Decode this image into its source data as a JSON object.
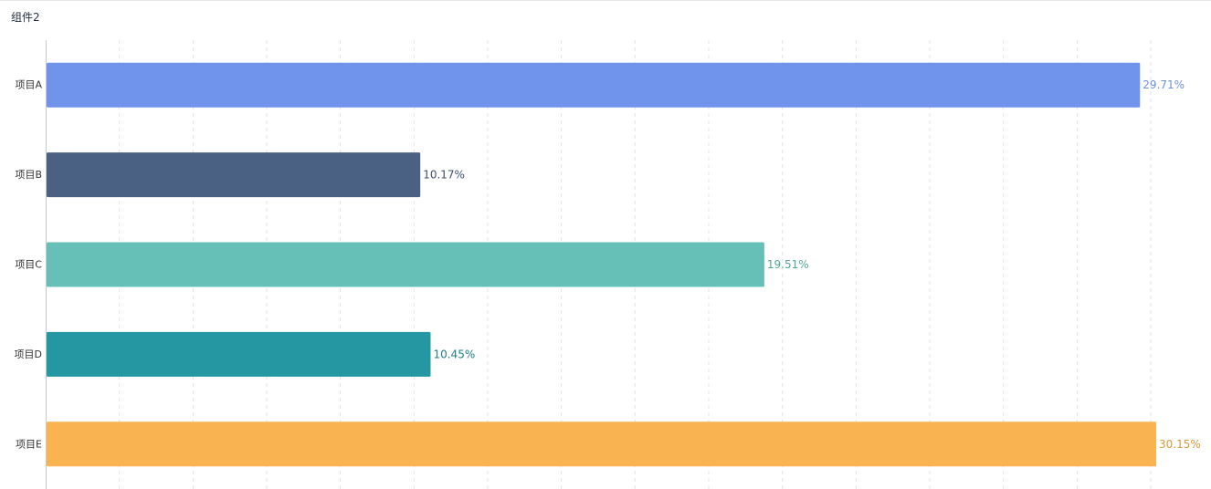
{
  "widget": {
    "title": "组件2"
  },
  "chart_data": {
    "type": "bar",
    "orientation": "horizontal",
    "title": "",
    "xlabel": "",
    "ylabel": "",
    "categories": [
      "项目A",
      "项目B",
      "项目C",
      "项目D",
      "项目E"
    ],
    "values": [
      29.71,
      10.17,
      19.51,
      10.45,
      30.15
    ],
    "value_labels": [
      "29.71%",
      "10.17%",
      "19.51%",
      "10.45%",
      "30.15%"
    ],
    "unit": "%",
    "xlim": [
      0,
      30
    ],
    "grid": true,
    "legend": "none",
    "colors": {
      "bars": [
        "#7094ec",
        "#4b6184",
        "#67c0b8",
        "#2497a2",
        "#f9b350"
      ],
      "labels": [
        "#6f8fdf",
        "#3f4f6b",
        "#4ea69d",
        "#1d7e86",
        "#d99a3a"
      ],
      "grid": "#e3e3e3",
      "axis": "#c8c8c8"
    }
  }
}
